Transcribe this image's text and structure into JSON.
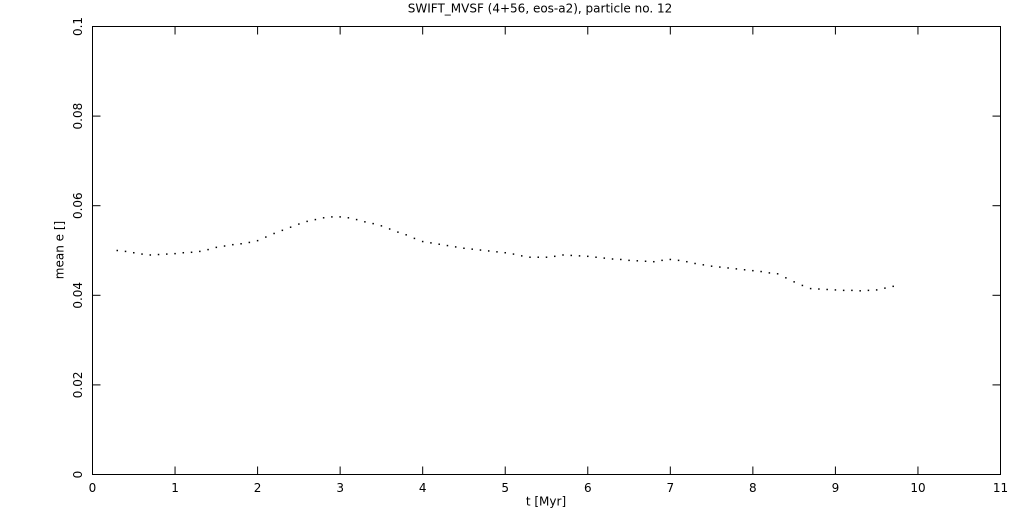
{
  "chart_data": {
    "type": "scatter",
    "title": "SWIFT_MVSF (4+56, eos-a2), particle no. 12",
    "x_label": "t [Myr]",
    "y_label": "mean e []",
    "color": "#000000",
    "x": [
      0.3,
      0.4,
      0.5,
      0.6,
      0.7,
      0.8,
      0.9,
      1.0,
      1.1,
      1.2,
      1.3,
      1.4,
      1.5,
      1.6,
      1.7,
      1.8,
      1.9,
      2.0,
      2.1,
      2.2,
      2.3,
      2.4,
      2.5,
      2.6,
      2.7,
      2.8,
      2.9,
      3.0,
      3.1,
      3.2,
      3.3,
      3.4,
      3.5,
      3.6,
      3.7,
      3.8,
      3.9,
      4.0,
      4.1,
      4.2,
      4.3,
      4.4,
      4.5,
      4.6,
      4.7,
      4.8,
      4.9,
      5.0,
      5.1,
      5.2,
      5.3,
      5.4,
      5.5,
      5.6,
      5.7,
      5.8,
      5.9,
      6.0,
      6.1,
      6.2,
      6.3,
      6.4,
      6.5,
      6.6,
      6.7,
      6.8,
      6.9,
      7.0,
      7.1,
      7.2,
      7.3,
      7.4,
      7.5,
      7.6,
      7.7,
      7.8,
      7.9,
      8.0,
      8.1,
      8.2,
      8.3,
      8.4,
      8.5,
      8.6,
      8.7,
      8.8,
      8.9,
      9.0,
      9.1,
      9.2,
      9.3,
      9.4,
      9.5,
      9.6,
      9.7
    ],
    "values": [
      0.05,
      0.0498,
      0.0495,
      0.0492,
      0.049,
      0.0491,
      0.0492,
      0.0493,
      0.0495,
      0.0496,
      0.0498,
      0.0502,
      0.0507,
      0.051,
      0.0513,
      0.0515,
      0.0518,
      0.0522,
      0.053,
      0.0538,
      0.0545,
      0.0552,
      0.0559,
      0.0565,
      0.0569,
      0.0573,
      0.0575,
      0.0575,
      0.0573,
      0.0569,
      0.0564,
      0.056,
      0.0555,
      0.0548,
      0.0541,
      0.0535,
      0.0527,
      0.052,
      0.0517,
      0.0514,
      0.0511,
      0.0508,
      0.0505,
      0.0503,
      0.0501,
      0.0499,
      0.0497,
      0.0495,
      0.0492,
      0.0488,
      0.0485,
      0.0485,
      0.0485,
      0.0487,
      0.049,
      0.0489,
      0.0488,
      0.0487,
      0.0485,
      0.0483,
      0.0481,
      0.048,
      0.0478,
      0.0477,
      0.0476,
      0.0475,
      0.0478,
      0.048,
      0.0478,
      0.0475,
      0.0471,
      0.0468,
      0.0465,
      0.0463,
      0.0461,
      0.0459,
      0.0457,
      0.0455,
      0.0453,
      0.045,
      0.0448,
      0.0439,
      0.043,
      0.0422,
      0.0415,
      0.0414,
      0.0413,
      0.0412,
      0.0411,
      0.0411,
      0.041,
      0.0411,
      0.0412,
      0.0416,
      0.042
    ],
    "xlim": [
      0,
      11
    ],
    "xticks": [
      0,
      1,
      2,
      3,
      4,
      5,
      6,
      7,
      8,
      9,
      10,
      11
    ],
    "ylim": [
      0,
      0.1
    ],
    "yticks": [
      0,
      0.02,
      0.04,
      0.06,
      0.08,
      0.1
    ]
  }
}
